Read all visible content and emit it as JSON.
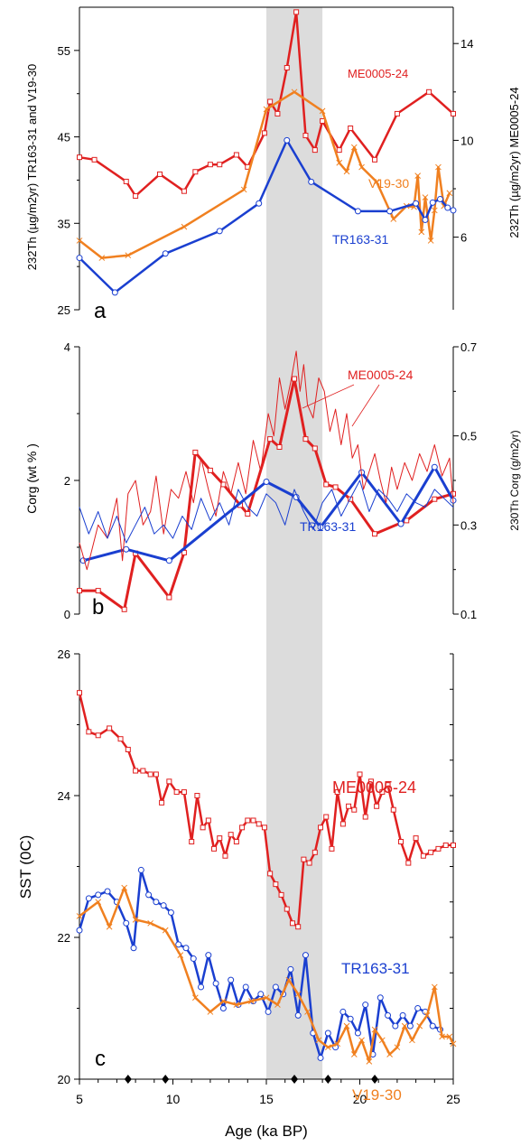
{
  "figure": {
    "xlabel": "Age (ka BP)",
    "x_ticks": [
      "5",
      "10",
      "15",
      "20",
      "25"
    ],
    "xlim": [
      5,
      25
    ],
    "shaded_band": [
      15.0,
      18.0
    ],
    "colors": {
      "red": "#e02020",
      "orange": "#f08020",
      "blue": "#1a3fd0",
      "band": "#dcdcdc",
      "axis": "#000000"
    }
  },
  "chart_data": [
    {
      "type": "line",
      "panel_letter": "a",
      "ylabel_left": "232Th (µg/m2yr) TR163-31 and V19-30",
      "ylabel_right": "232Th (µg/m2yr)  ME0005-24",
      "ylim_left": [
        25,
        60
      ],
      "ylim_right": [
        3,
        15.5
      ],
      "left_ticks": [
        "25",
        "35",
        "45",
        "55"
      ],
      "right_ticks": [
        "6",
        "10",
        "14"
      ],
      "series_labels": {
        "ME0005-24": "ME0005-24",
        "V19-30": "V19-30",
        "TR163-31": "TR163-31"
      },
      "series": [
        {
          "name": "ME0005-24",
          "axis": "right",
          "color": "#e02020",
          "marker": "square",
          "x": [
            5.0,
            5.8,
            7.5,
            8.0,
            9.3,
            10.6,
            11.2,
            12.0,
            12.5,
            13.4,
            14.0,
            14.9,
            15.2,
            15.6,
            16.1,
            16.6,
            17.1,
            17.6,
            18.0,
            18.9,
            19.5,
            20.8,
            22.0,
            23.7,
            25.0
          ],
          "y": [
            9.3,
            9.2,
            8.3,
            7.7,
            8.6,
            7.9,
            8.7,
            9.0,
            9.0,
            9.4,
            8.9,
            10.3,
            11.6,
            11.1,
            13.0,
            15.3,
            10.2,
            9.6,
            10.8,
            9.6,
            10.5,
            9.2,
            11.1,
            12.0,
            11.1
          ]
        },
        {
          "name": "V19-30",
          "axis": "left",
          "color": "#f08020",
          "marker": "x",
          "x": [
            5.0,
            6.2,
            7.6,
            10.6,
            13.8,
            15.0,
            16.5,
            18.0,
            18.9,
            19.3,
            19.7,
            20.1,
            20.9,
            21.8,
            22.5,
            22.9,
            23.1,
            23.3,
            23.5,
            23.8,
            24.0,
            24.2,
            24.5,
            24.8
          ],
          "y": [
            33.0,
            31.0,
            31.3,
            34.6,
            38.9,
            48.2,
            50.2,
            48.0,
            42.0,
            41.0,
            43.8,
            41.5,
            39.8,
            35.5,
            37.0,
            36.9,
            40.5,
            34.0,
            38.0,
            33.0,
            36.5,
            41.5,
            37.0,
            38.5
          ]
        },
        {
          "name": "TR163-31",
          "axis": "left",
          "color": "#1a3fd0",
          "marker": "circle",
          "x": [
            5.0,
            6.9,
            9.6,
            12.5,
            14.6,
            16.1,
            17.4,
            19.9,
            21.6,
            23.0,
            23.5,
            23.9,
            24.3,
            24.7,
            25.0
          ],
          "y": [
            31.0,
            27.0,
            31.5,
            34.1,
            37.3,
            44.6,
            39.8,
            36.4,
            36.4,
            37.3,
            35.4,
            37.4,
            37.8,
            36.8,
            36.5
          ]
        }
      ]
    },
    {
      "type": "line",
      "panel_letter": "b",
      "ylabel_left": "Corg (wt % )",
      "ylabel_right": "230Th Corg (g/m2yr)",
      "ylim_left": [
        0,
        4
      ],
      "ylim_right": [
        0.1,
        0.7
      ],
      "left_ticks": [
        "0",
        "2",
        "4"
      ],
      "right_ticks": [
        "0.1",
        "0.3",
        "0.5",
        "0.7"
      ],
      "series_labels": {
        "ME0005-24": "ME0005-24",
        "TR163-31": "TR163-31"
      },
      "series": [
        {
          "name": "ME0005-24 Corg",
          "axis": "left",
          "color": "#e02020",
          "width": 3,
          "marker": "square",
          "x": [
            5.0,
            6.0,
            7.4,
            8.0,
            9.8,
            10.6,
            11.2,
            12.0,
            12.7,
            13.6,
            14.0,
            15.2,
            15.7,
            16.5,
            17.1,
            17.6,
            18.2,
            18.7,
            19.5,
            20.8,
            22.5,
            24.0,
            25.0
          ],
          "y": [
            0.35,
            0.35,
            0.07,
            0.91,
            0.25,
            0.92,
            2.42,
            2.15,
            1.94,
            1.63,
            1.5,
            2.62,
            2.5,
            3.52,
            2.62,
            2.48,
            1.94,
            1.9,
            1.72,
            1.2,
            1.4,
            1.72,
            1.8
          ]
        },
        {
          "name": "TR163-31 Corg",
          "axis": "left",
          "color": "#1a3fd0",
          "width": 3,
          "marker": "circle",
          "x": [
            5.2,
            7.5,
            9.8,
            15.0,
            16.6,
            17.9,
            20.1,
            22.2,
            24.0,
            25.0
          ],
          "y": [
            0.8,
            0.97,
            0.8,
            1.98,
            1.75,
            1.3,
            2.12,
            1.35,
            2.2,
            1.7
          ]
        },
        {
          "name": "ME0005-24 230Th Corg",
          "axis": "right",
          "color": "#e02020",
          "width": 1,
          "x": [
            5.0,
            5.4,
            6.0,
            6.5,
            7.0,
            7.3,
            7.6,
            8.0,
            8.4,
            8.8,
            9.1,
            9.5,
            9.9,
            10.3,
            10.7,
            11.1,
            11.5,
            11.9,
            12.3,
            12.7,
            13.1,
            13.5,
            13.9,
            14.3,
            14.7,
            15.1,
            15.4,
            15.7,
            16.0,
            16.3,
            16.6,
            16.8,
            17.0,
            17.2,
            17.5,
            17.8,
            18.1,
            18.4,
            18.7,
            19.0,
            19.3,
            19.6,
            19.9,
            20.2,
            20.5,
            20.8,
            21.1,
            21.4,
            21.7,
            22.0,
            22.4,
            22.8,
            23.2,
            23.6,
            24.0,
            24.4,
            24.8,
            25.0
          ],
          "y": [
            0.26,
            0.2,
            0.3,
            0.27,
            0.36,
            0.22,
            0.37,
            0.4,
            0.3,
            0.33,
            0.41,
            0.28,
            0.38,
            0.36,
            0.42,
            0.35,
            0.45,
            0.38,
            0.32,
            0.42,
            0.37,
            0.44,
            0.37,
            0.49,
            0.42,
            0.55,
            0.5,
            0.63,
            0.56,
            0.62,
            0.69,
            0.6,
            0.66,
            0.57,
            0.54,
            0.63,
            0.6,
            0.51,
            0.56,
            0.48,
            0.55,
            0.45,
            0.48,
            0.38,
            0.42,
            0.46,
            0.4,
            0.35,
            0.43,
            0.38,
            0.44,
            0.4,
            0.46,
            0.42,
            0.48,
            0.41,
            0.45,
            0.35
          ]
        },
        {
          "name": "TR163-31 230Th Corg",
          "axis": "right",
          "color": "#1a3fd0",
          "width": 1,
          "x": [
            5.0,
            5.5,
            6.0,
            6.5,
            7.0,
            7.5,
            8.0,
            8.5,
            9.0,
            9.5,
            10.0,
            10.5,
            11.0,
            11.5,
            12.0,
            12.5,
            13.0,
            13.5,
            14.0,
            14.5,
            15.0,
            15.5,
            16.0,
            16.5,
            17.0,
            17.5,
            18.0,
            18.5,
            19.0,
            19.5,
            20.0,
            20.5,
            21.0,
            21.5,
            22.0,
            22.5,
            23.0,
            23.5,
            24.0,
            24.5,
            25.0
          ],
          "y": [
            0.34,
            0.28,
            0.33,
            0.27,
            0.32,
            0.26,
            0.3,
            0.34,
            0.28,
            0.3,
            0.27,
            0.32,
            0.29,
            0.36,
            0.31,
            0.35,
            0.3,
            0.38,
            0.34,
            0.32,
            0.37,
            0.35,
            0.3,
            0.38,
            0.33,
            0.29,
            0.35,
            0.38,
            0.32,
            0.36,
            0.4,
            0.33,
            0.38,
            0.36,
            0.33,
            0.37,
            0.35,
            0.34,
            0.38,
            0.36,
            0.34
          ]
        }
      ]
    },
    {
      "type": "line",
      "panel_letter": "c",
      "ylabel_left": "SST (0C)",
      "ylim_left": [
        20,
        26
      ],
      "left_ticks": [
        "20",
        "22",
        "24",
        "26"
      ],
      "series_labels": {
        "ME0005-24": "ME0005-24",
        "TR163-31": "TR163-31",
        "V19-30": "V19-30"
      },
      "age_control_points": [
        7.6,
        9.6,
        16.5,
        18.3,
        20.8
      ],
      "series": [
        {
          "name": "ME0005-24",
          "axis": "left",
          "color": "#e02020",
          "marker": "square",
          "x": [
            5.0,
            5.5,
            6.0,
            6.6,
            7.2,
            7.6,
            8.0,
            8.4,
            8.8,
            9.1,
            9.4,
            9.8,
            10.2,
            10.6,
            11.0,
            11.3,
            11.6,
            11.9,
            12.2,
            12.5,
            12.8,
            13.1,
            13.4,
            13.7,
            14.0,
            14.3,
            14.6,
            14.9,
            15.2,
            15.5,
            15.8,
            16.1,
            16.4,
            16.7,
            17.0,
            17.3,
            17.6,
            17.9,
            18.2,
            18.5,
            18.8,
            19.1,
            19.4,
            19.7,
            20.0,
            20.3,
            20.6,
            20.9,
            21.2,
            21.5,
            21.8,
            22.2,
            22.6,
            23.0,
            23.4,
            23.8,
            24.2,
            24.6,
            25.0
          ],
          "y": [
            25.45,
            24.9,
            24.85,
            24.95,
            24.8,
            24.65,
            24.35,
            24.35,
            24.3,
            24.3,
            23.9,
            24.2,
            24.05,
            24.05,
            23.35,
            24.0,
            23.55,
            23.65,
            23.25,
            23.4,
            23.15,
            23.45,
            23.35,
            23.55,
            23.65,
            23.65,
            23.6,
            23.55,
            22.9,
            22.75,
            22.6,
            22.4,
            22.2,
            22.15,
            23.1,
            23.05,
            23.2,
            23.55,
            23.7,
            23.25,
            24.05,
            23.6,
            23.85,
            23.8,
            24.3,
            23.7,
            24.2,
            23.85,
            24.05,
            24.15,
            23.8,
            23.35,
            23.05,
            23.4,
            23.15,
            23.2,
            23.25,
            23.3,
            23.3
          ]
        },
        {
          "name": "TR163-31",
          "axis": "left",
          "color": "#1a3fd0",
          "marker": "circle",
          "x": [
            5.0,
            5.5,
            6.0,
            6.5,
            7.0,
            7.5,
            7.9,
            8.3,
            8.7,
            9.1,
            9.5,
            9.9,
            10.3,
            10.7,
            11.1,
            11.5,
            11.9,
            12.3,
            12.7,
            13.1,
            13.5,
            13.9,
            14.3,
            14.7,
            15.1,
            15.5,
            15.9,
            16.3,
            16.7,
            17.1,
            17.5,
            17.9,
            18.3,
            18.7,
            19.1,
            19.5,
            19.9,
            20.3,
            20.7,
            21.1,
            21.5,
            21.9,
            22.3,
            22.7,
            23.1,
            23.5,
            23.9,
            24.3
          ],
          "y": [
            22.1,
            22.55,
            22.6,
            22.65,
            22.5,
            22.2,
            21.85,
            22.95,
            22.6,
            22.5,
            22.45,
            22.35,
            21.9,
            21.85,
            21.7,
            21.3,
            21.75,
            21.35,
            21.0,
            21.4,
            21.05,
            21.3,
            21.1,
            21.2,
            20.95,
            21.3,
            21.2,
            21.55,
            20.9,
            21.75,
            20.65,
            20.3,
            20.65,
            20.45,
            20.95,
            20.85,
            20.65,
            21.05,
            20.35,
            21.15,
            20.9,
            20.75,
            20.9,
            20.75,
            21.0,
            20.95,
            20.75,
            20.7
          ]
        },
        {
          "name": "V19-30",
          "axis": "left",
          "color": "#f08020",
          "marker": "x",
          "x": [
            5.0,
            6.0,
            6.6,
            7.4,
            8.0,
            8.8,
            9.6,
            10.4,
            11.2,
            12.0,
            12.7,
            13.4,
            14.2,
            15.0,
            15.6,
            16.2,
            16.7,
            17.2,
            17.8,
            18.3,
            18.8,
            19.3,
            19.7,
            20.1,
            20.5,
            20.8,
            21.2,
            21.6,
            22.0,
            22.4,
            22.8,
            23.2,
            23.6,
            24.0,
            24.4,
            24.8,
            25.0
          ],
          "y": [
            22.3,
            22.5,
            22.15,
            22.7,
            22.25,
            22.2,
            22.1,
            21.75,
            21.15,
            20.95,
            21.1,
            21.05,
            21.1,
            21.15,
            21.05,
            21.4,
            21.2,
            20.95,
            20.55,
            20.45,
            20.5,
            20.75,
            20.35,
            20.55,
            20.25,
            20.7,
            20.55,
            20.35,
            20.45,
            20.75,
            20.55,
            20.75,
            20.9,
            21.3,
            20.6,
            20.6,
            20.5
          ]
        }
      ]
    }
  ]
}
